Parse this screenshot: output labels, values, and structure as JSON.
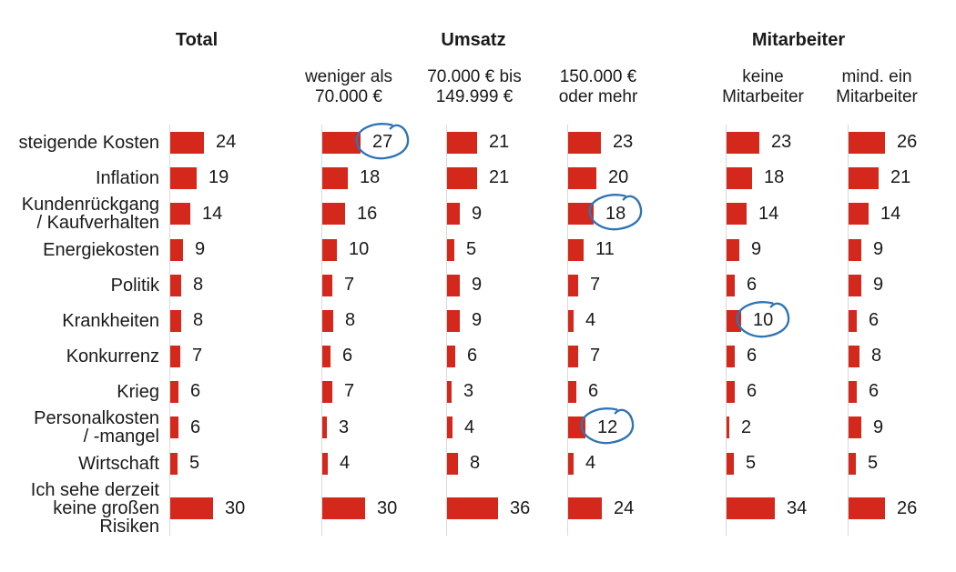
{
  "chart_data": {
    "type": "bar",
    "orientation": "horizontal",
    "xlim": [
      0,
      40
    ],
    "grid": false,
    "bar_color": "#d5281c",
    "axis_line_color": "#d9d9d9",
    "annotation_color": "#2e74b5",
    "annotation_style": "hand-drawn-ellipse",
    "group_headers": [
      "Total",
      "Umsatz",
      "Mitarbeiter"
    ],
    "categories": [
      "steigende Kosten",
      "Inflation",
      "Kundenrückgang\n/ Kaufverhalten",
      "Energiekosten",
      "Politik",
      "Krankheiten",
      "Konkurrenz",
      "Krieg",
      "Personalkosten\n/ -mangel",
      "Wirtschaft",
      "Ich sehe derzeit\nkeine großen\nRisiken"
    ],
    "series": [
      {
        "name": "Total",
        "group": "Total",
        "header": "",
        "values": [
          24,
          19,
          14,
          9,
          8,
          8,
          7,
          6,
          6,
          5,
          30
        ],
        "circled_rows": []
      },
      {
        "name": "weniger als 70.000 €",
        "group": "Umsatz",
        "header": "weniger als\n70.000 €",
        "values": [
          27,
          18,
          16,
          10,
          7,
          8,
          6,
          7,
          3,
          4,
          30
        ],
        "circled_rows": [
          0
        ]
      },
      {
        "name": "70.000 € bis 149.999 €",
        "group": "Umsatz",
        "header": "70.000 € bis\n149.999 €",
        "values": [
          21,
          21,
          9,
          5,
          9,
          9,
          6,
          3,
          4,
          8,
          36
        ],
        "circled_rows": []
      },
      {
        "name": "150.000 € oder mehr",
        "group": "Umsatz",
        "header": "150.000 €\noder mehr",
        "values": [
          23,
          20,
          18,
          11,
          7,
          4,
          7,
          6,
          12,
          4,
          24
        ],
        "circled_rows": [
          2,
          8
        ]
      },
      {
        "name": "keine Mitarbeiter",
        "group": "Mitarbeiter",
        "header": "keine\nMitarbeiter",
        "values": [
          23,
          18,
          14,
          9,
          6,
          10,
          6,
          6,
          2,
          5,
          34
        ],
        "circled_rows": [
          5
        ]
      },
      {
        "name": "mind. ein Mitarbeiter",
        "group": "Mitarbeiter",
        "header": "mind. ein\nMitarbeiter",
        "values": [
          26,
          21,
          14,
          9,
          9,
          6,
          8,
          6,
          9,
          5,
          26
        ],
        "circled_rows": []
      }
    ]
  }
}
